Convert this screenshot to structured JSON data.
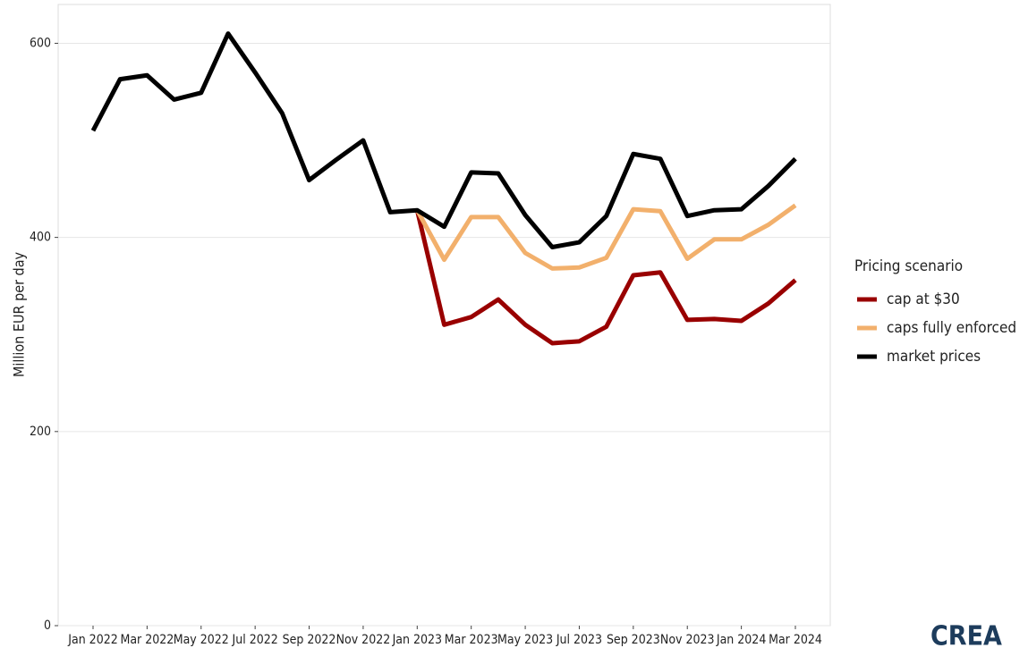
{
  "chart_data": {
    "type": "line",
    "y_label": "Million EUR per day",
    "legend_title": "Pricing scenario",
    "logo": "CREA",
    "categories": [
      "Jan 2022",
      null,
      "Mar 2022",
      null,
      "May 2022",
      null,
      "Jul 2022",
      null,
      "Sep 2022",
      null,
      "Nov 2022",
      null,
      "Jan 2023",
      null,
      "Mar 2023",
      null,
      "May 2023",
      null,
      "Jul 2023",
      null,
      "Sep 2023",
      null,
      "Nov 2023",
      null,
      "Jan 2024",
      null,
      "Mar 2024"
    ],
    "series": [
      {
        "name": "cap at $30",
        "color": "#990000",
        "values": [
          null,
          null,
          null,
          null,
          null,
          null,
          null,
          null,
          null,
          null,
          null,
          null,
          428,
          310,
          318,
          336,
          310,
          291,
          293,
          308,
          361,
          364,
          315,
          316,
          314,
          332,
          356
        ]
      },
      {
        "name": "caps fully enforced",
        "color": "#f2b06c",
        "values": [
          null,
          null,
          null,
          null,
          null,
          null,
          null,
          null,
          null,
          null,
          null,
          null,
          428,
          377,
          421,
          421,
          384,
          368,
          369,
          379,
          429,
          427,
          378,
          398,
          398,
          413,
          433
        ]
      },
      {
        "name": "market prices",
        "color": "#000000",
        "values": [
          510,
          563,
          567,
          542,
          549,
          610,
          570,
          528,
          459,
          480,
          500,
          426,
          428,
          411,
          467,
          466,
          423,
          390,
          395,
          422,
          486,
          481,
          422,
          428,
          429,
          453,
          481
        ]
      }
    ],
    "ylim": [
      0,
      640
    ],
    "yticks": [
      0,
      200,
      400,
      600
    ],
    "grid": true
  }
}
